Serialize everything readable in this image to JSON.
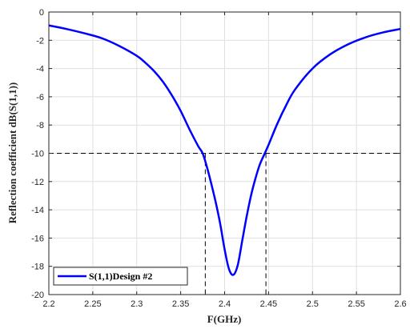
{
  "chart_data": {
    "type": "line",
    "title": "",
    "xlabel": "F(GHz)",
    "ylabel": "Reflection coefficient dB(S(1,1))",
    "xlim": [
      2.2,
      2.6
    ],
    "ylim": [
      -20,
      0
    ],
    "xticks": [
      2.2,
      2.25,
      2.3,
      2.35,
      2.4,
      2.45,
      2.5,
      2.55,
      2.6
    ],
    "yticks": [
      0,
      -2,
      -4,
      -6,
      -8,
      -10,
      -12,
      -14,
      -16,
      -18,
      -20
    ],
    "grid": true,
    "legend_position": "bottom-left",
    "series": [
      {
        "name": "S(1,1)Design #2",
        "color": "#0000ff",
        "x": [
          2.2,
          2.22,
          2.24,
          2.26,
          2.28,
          2.3,
          2.31,
          2.32,
          2.33,
          2.34,
          2.35,
          2.36,
          2.37,
          2.375,
          2.38,
          2.385,
          2.39,
          2.395,
          2.4,
          2.405,
          2.41,
          2.415,
          2.42,
          2.425,
          2.43,
          2.435,
          2.44,
          2.445,
          2.45,
          2.46,
          2.47,
          2.48,
          2.5,
          2.52,
          2.54,
          2.56,
          2.58,
          2.6
        ],
        "y": [
          -0.95,
          -1.2,
          -1.5,
          -1.85,
          -2.4,
          -3.1,
          -3.6,
          -4.2,
          -4.95,
          -5.9,
          -7.0,
          -8.3,
          -9.5,
          -10.0,
          -11.0,
          -12.2,
          -13.5,
          -15.0,
          -16.8,
          -18.2,
          -18.6,
          -17.9,
          -16.2,
          -14.5,
          -13.0,
          -11.8,
          -10.8,
          -10.1,
          -9.4,
          -7.9,
          -6.6,
          -5.5,
          -4.0,
          -3.0,
          -2.3,
          -1.8,
          -1.45,
          -1.2
        ]
      }
    ],
    "reference_lines": {
      "level_db": -10,
      "frequencies": [
        2.378,
        2.447
      ]
    }
  }
}
